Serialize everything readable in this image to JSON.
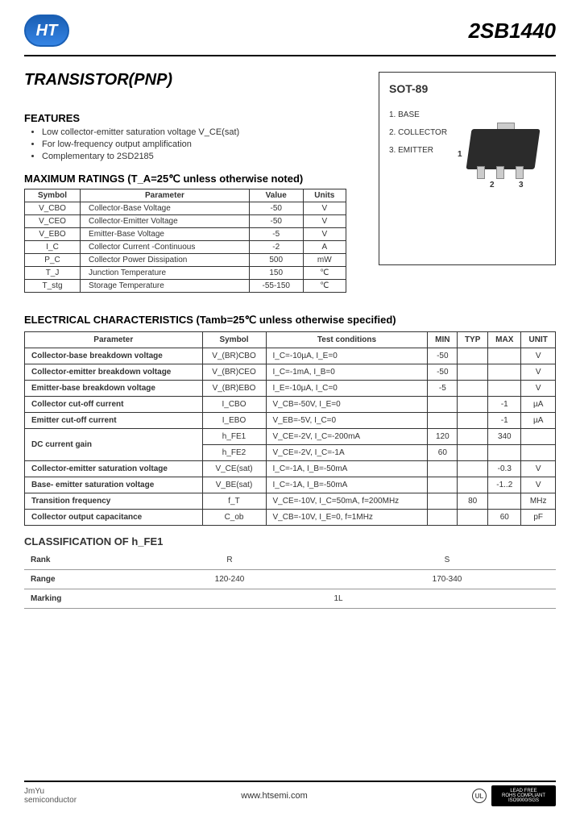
{
  "header": {
    "logo_text": "HT",
    "part_number": "2SB1440"
  },
  "title": "TRANSISTOR(PNP)",
  "package": {
    "name": "SOT-89",
    "pins": [
      "1. BASE",
      "2. COLLECTOR",
      "3. EMITTER"
    ],
    "pin_numbers": [
      "1",
      "2",
      "3"
    ]
  },
  "features": {
    "heading": "FEATURES",
    "items": [
      "Low collector-emitter saturation voltage V_CE(sat)",
      "For low-frequency output amplification",
      "Complementary to 2SD2185"
    ]
  },
  "ratings": {
    "heading": "MAXIMUM RATINGS (T_A=25℃ unless otherwise noted)",
    "columns": [
      "Symbol",
      "Parameter",
      "Value",
      "Units"
    ],
    "rows": [
      [
        "V_CBO",
        "Collector-Base Voltage",
        "-50",
        "V"
      ],
      [
        "V_CEO",
        "Collector-Emitter Voltage",
        "-50",
        "V"
      ],
      [
        "V_EBO",
        "Emitter-Base Voltage",
        "-5",
        "V"
      ],
      [
        "I_C",
        "Collector Current -Continuous",
        "-2",
        "A"
      ],
      [
        "P_C",
        "Collector Power Dissipation",
        "500",
        "mW"
      ],
      [
        "T_J",
        "Junction Temperature",
        "150",
        "℃"
      ],
      [
        "T_stg",
        "Storage Temperature",
        "-55-150",
        "℃"
      ]
    ]
  },
  "electrical": {
    "heading": "ELECTRICAL CHARACTERISTICS (Tamb=25℃ unless otherwise specified)",
    "columns": [
      "Parameter",
      "Symbol",
      "Test    conditions",
      "MIN",
      "TYP",
      "MAX",
      "UNIT"
    ],
    "rows": [
      {
        "param": "Collector-base breakdown voltage",
        "sym": "V_(BR)CBO",
        "cond": "I_C=-10µA, I_E=0",
        "min": "-50",
        "typ": "",
        "max": "",
        "unit": "V",
        "rowgroup": "g1"
      },
      {
        "param": "Collector-emitter breakdown voltage",
        "sym": "V_(BR)CEO",
        "cond": "I_C=-1mA, I_B=0",
        "min": "-50",
        "typ": "",
        "max": "",
        "unit": "V",
        "rowgroup": "g1"
      },
      {
        "param": "Emitter-base breakdown voltage",
        "sym": "V_(BR)EBO",
        "cond": "I_E=-10µA, I_C=0",
        "min": "-5",
        "typ": "",
        "max": "",
        "unit": "V",
        "rowgroup": "g1"
      },
      {
        "param": "Collector cut-off current",
        "sym": "I_CBO",
        "cond": "V_CB=-50V, I_E=0",
        "min": "",
        "typ": "",
        "max": "-1",
        "unit": "µA",
        "rowgroup": "g2"
      },
      {
        "param": "Emitter cut-off current",
        "sym": "I_EBO",
        "cond": "V_EB=-5V, I_C=0",
        "min": "",
        "typ": "",
        "max": "-1",
        "unit": "µA",
        "rowgroup": "g3"
      },
      {
        "param": "DC current gain",
        "sym": "h_FE1",
        "cond": "V_CE=-2V, I_C=-200mA",
        "min": "120",
        "typ": "",
        "max": "340",
        "unit": "",
        "rowgroup": "g4",
        "rowspan": 2
      },
      {
        "param": "",
        "sym": "h_FE2",
        "cond": "V_CE=-2V, I_C=-1A",
        "min": "60",
        "typ": "",
        "max": "",
        "unit": "",
        "rowgroup": "g4",
        "merged": true
      },
      {
        "param": "Collector-emitter saturation voltage",
        "sym": "V_CE(sat)",
        "cond": "I_C=-1A, I_B=-50mA",
        "min": "",
        "typ": "",
        "max": "-0.3",
        "unit": "V",
        "rowgroup": "g5"
      },
      {
        "param": "Base- emitter saturation voltage",
        "sym": "V_BE(sat)",
        "cond": "I_C=-1A, I_B=-50mA",
        "min": "",
        "typ": "",
        "max": "-1..2",
        "unit": "V",
        "rowgroup": "g6"
      },
      {
        "param": "Transition frequency",
        "sym": "f_T",
        "cond": "V_CE=-10V, I_C=50mA, f=200MHz",
        "min": "",
        "typ": "80",
        "max": "",
        "unit": "MHz",
        "rowgroup": "g6"
      },
      {
        "param": "Collector output capacitance",
        "sym": "C_ob",
        "cond": "V_CB=-10V, I_E=0, f=1MHz",
        "min": "",
        "typ": "",
        "max": "60",
        "unit": "pF",
        "rowgroup": "g6"
      }
    ]
  },
  "classification": {
    "heading": "CLASSIFICATION OF   h_FE1",
    "rows": [
      {
        "label": "Rank",
        "cells": [
          "R",
          "S"
        ]
      },
      {
        "label": "Range",
        "cells": [
          "120-240",
          "170-340"
        ]
      },
      {
        "label": "Marking",
        "cells_merged": "1L"
      }
    ]
  },
  "footer": {
    "company_l1": "JmYu",
    "company_l2": "semiconductor",
    "url": "www.htsemi.com",
    "cert_l1": "LEAD FREE",
    "cert_l2": "ROHS COMPLIANT",
    "cert_l3": "ISO9000/SGS",
    "ul": "UL"
  },
  "colors": {
    "text": "#333333",
    "border": "#333333",
    "logo_grad_top": "#1a5fb4",
    "logo_grad_bot": "#3584e4",
    "pkg_body": "#2b2b2b",
    "pkg_metal": "#cccccc"
  }
}
